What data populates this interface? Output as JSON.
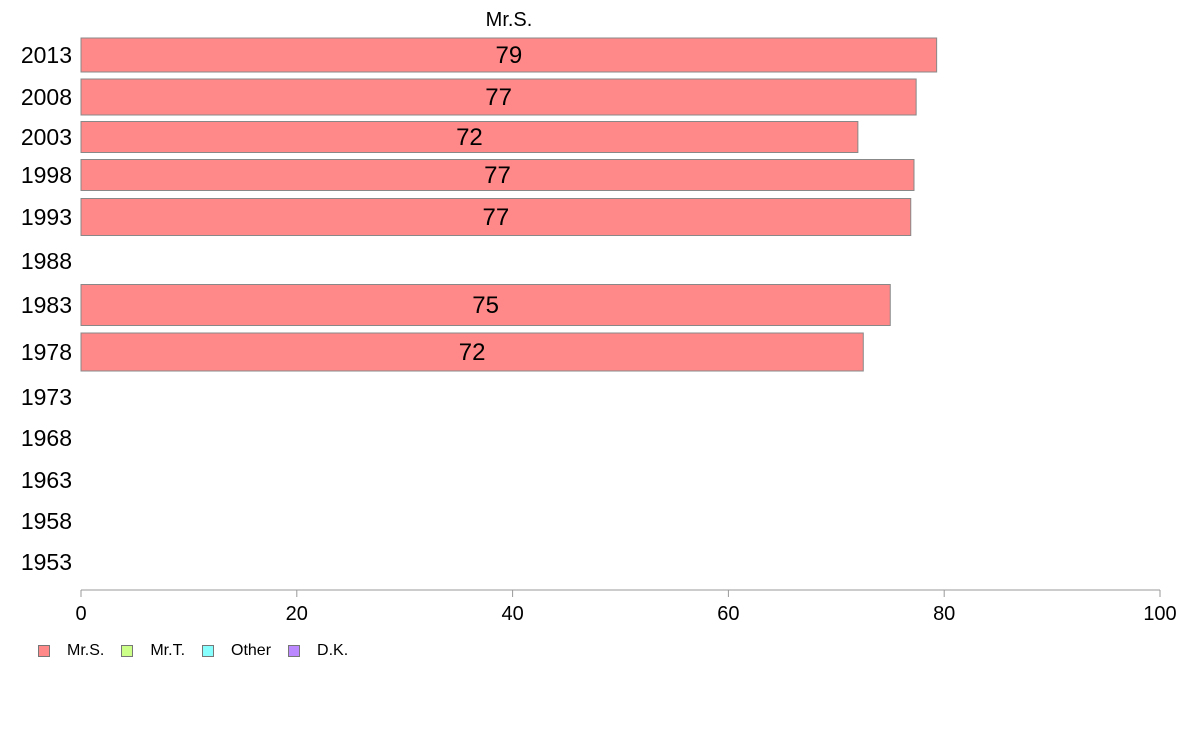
{
  "chart_data": {
    "type": "bar",
    "orientation": "horizontal",
    "title": "Mr.S.",
    "categories": [
      "2013",
      "2008",
      "2003",
      "1998",
      "1993",
      "1988",
      "1983",
      "1978",
      "1973",
      "1968",
      "1963",
      "1958",
      "1953"
    ],
    "series": [
      {
        "name": "Mr.S.",
        "color": "#ff8888",
        "values": [
          79.3,
          77.4,
          72.0,
          77.2,
          76.9,
          null,
          75.0,
          72.5,
          null,
          null,
          null,
          null,
          null
        ]
      }
    ],
    "data_labels": [
      "79",
      "77",
      "72",
      "77",
      "77",
      "",
      "75",
      "72",
      "",
      "",
      "",
      "",
      ""
    ],
    "x_ticks": [
      "0",
      "20",
      "40",
      "60",
      "80",
      "100"
    ],
    "xlim": [
      0,
      100
    ],
    "grid": false,
    "legend": {
      "placement": "bottom-left",
      "items": [
        {
          "label": "Mr.S.",
          "color": "#ff8888"
        },
        {
          "label": "Mr.T.",
          "color": "#ccff88"
        },
        {
          "label": "Other",
          "color": "#88ffff"
        },
        {
          "label": "D.K.",
          "color": "#bb88ff"
        }
      ]
    }
  }
}
